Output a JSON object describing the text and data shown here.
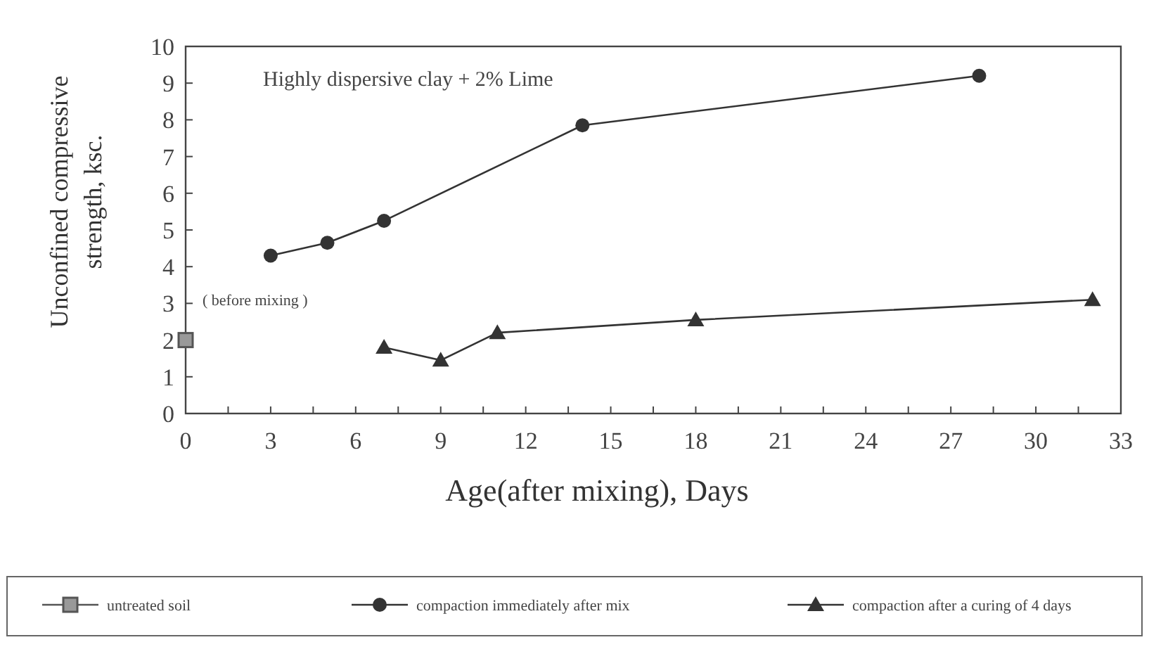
{
  "chart_data": {
    "type": "line",
    "xlabel": "Age(after mixing), Days",
    "ylabel": "Unconfined compressive strength, ksc.",
    "xlim": [
      0,
      33
    ],
    "ylim": [
      0,
      10
    ],
    "xticks": [
      0,
      {
        "value": 1.5,
        "label": null
      },
      3,
      {
        "value": 4.5,
        "label": null
      },
      6,
      {
        "value": 7.5,
        "label": null
      },
      9,
      {
        "value": 10.5,
        "label": null
      },
      12,
      {
        "value": 13.5,
        "label": null
      },
      15,
      {
        "value": 16.5,
        "label": null
      },
      18,
      {
        "value": 19.5,
        "label": null
      },
      21,
      {
        "value": 22.5,
        "label": null
      },
      24,
      {
        "value": 25.5,
        "label": null
      },
      27,
      {
        "value": 28.5,
        "label": null
      },
      30,
      {
        "value": 31.5,
        "label": null
      },
      33
    ],
    "yticks": [
      0,
      1,
      2,
      3,
      4,
      5,
      6,
      7,
      8,
      9,
      10
    ],
    "grid": false,
    "legend": "bottom",
    "annotations": [
      "Highly dispersive clay + 2% Lime",
      {
        "text": "( before mixing )",
        "x": 0,
        "y": 2
      }
    ],
    "series": [
      {
        "name": "untreated soil",
        "color": "#555555",
        "marker": "square",
        "x": [
          0
        ],
        "values": [
          2
        ]
      },
      {
        "name": "compaction immediately after mix",
        "color": "#333333",
        "marker": "circle",
        "x": [
          3,
          5,
          7,
          14,
          28
        ],
        "values": [
          4.3,
          4.65,
          5.25,
          7.85,
          9.2
        ]
      },
      {
        "name": "compaction after a curing of 4 days",
        "color": "#333333",
        "marker": "triangle",
        "x": [
          7,
          9,
          11,
          18,
          32
        ],
        "values": [
          1.8,
          1.45,
          2.2,
          2.55,
          3.1
        ]
      }
    ]
  }
}
